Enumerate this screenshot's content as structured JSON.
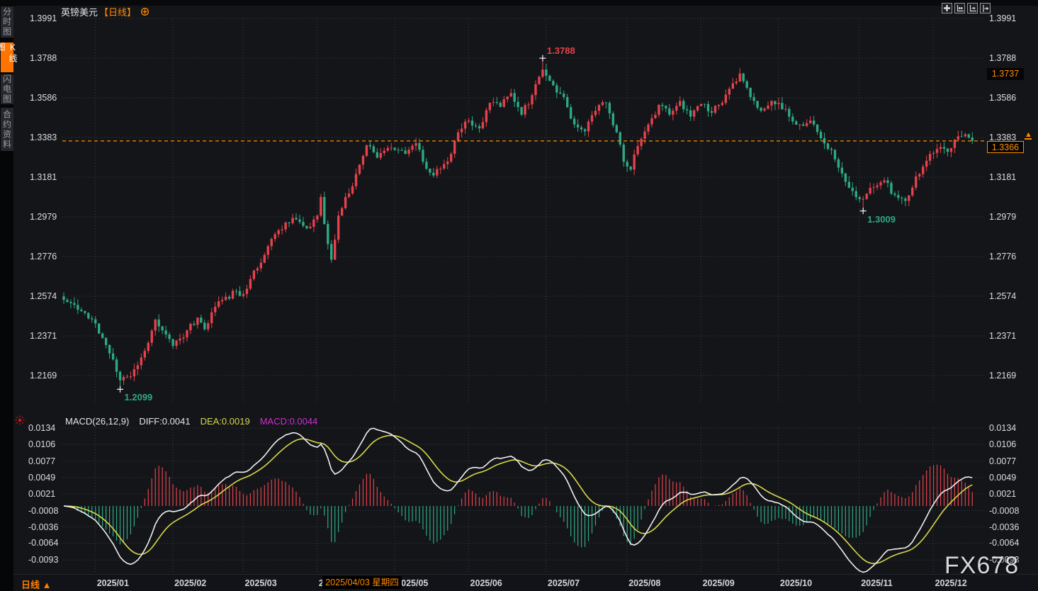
{
  "app": {
    "title": "英镑美元",
    "period_tag": "【日线】",
    "watermark": "FX678"
  },
  "sidebar": {
    "tabs": [
      {
        "label": "分时图",
        "active": false
      },
      {
        "label": "K线图",
        "active": true
      },
      {
        "label": "闪电图",
        "active": false
      },
      {
        "label": "合约资料",
        "active": false
      }
    ]
  },
  "toolbar": {
    "icons": [
      "crosshair-move-icon",
      "fit-both-axes-icon",
      "scroll-to-recent-icon",
      "shift-right-icon"
    ]
  },
  "price_boxes": {
    "upper_value": "1.3737",
    "current_value": "1.3366",
    "up_arrow": "▲"
  },
  "macd_header": {
    "main": "MACD(26,12,9)",
    "diff": "DIFF:0.0041",
    "dea": "DEA:0.0019",
    "macd": "MACD:0.0044"
  },
  "bottom": {
    "period_label": "日线 ▲",
    "date_tooltip": "2025/04/03 星期四"
  },
  "colors": {
    "accent_orange": "#ff8a00",
    "up_candle": "#e5424c",
    "down_candle": "#2daa83",
    "diff_line": "#f0f0f2",
    "dea_line": "#d8d84a",
    "macd_value_text": "#cc2fd0",
    "grid": "#3c3e44",
    "axis_text": "#dcdde0"
  },
  "chart_data": {
    "type": "candlestick+macd",
    "symbol": "英镑美元 (GBP/USD)",
    "interval": "daily",
    "price_axis_labels": [
      "1.3991",
      "1.3788",
      "1.3586",
      "1.3383",
      "1.3181",
      "1.2979",
      "1.2776",
      "1.2574",
      "1.2371",
      "1.2169"
    ],
    "price_axis_range": [
      1.2169,
      1.3991
    ],
    "macd_axis_labels": [
      "0.0134",
      "0.0106",
      "0.0077",
      "0.0049",
      "0.0021",
      "-0.0008",
      "-0.0036",
      "-0.0064",
      "-0.0093"
    ],
    "macd_axis_range": [
      -0.0093,
      0.0134
    ],
    "months": [
      {
        "label": "2025/01",
        "day": 9
      },
      {
        "label": "2025/02",
        "day": 31
      },
      {
        "label": "2025/03",
        "day": 51
      },
      {
        "label": "2025/04",
        "day": 72
      },
      {
        "label": "2025/05",
        "day": 94
      },
      {
        "label": "2025/06",
        "day": 115
      },
      {
        "label": "2025/07",
        "day": 137
      },
      {
        "label": "2025/08",
        "day": 160
      },
      {
        "label": "2025/09",
        "day": 181
      },
      {
        "label": "2025/10",
        "day": 203
      },
      {
        "label": "2025/11",
        "day": 226
      },
      {
        "label": "2025/12",
        "day": 247
      }
    ],
    "num_days": 259,
    "close_path_anchors": [
      [
        0,
        1.2555
      ],
      [
        4,
        1.2505
      ],
      [
        9,
        1.2435
      ],
      [
        12,
        1.2325
      ],
      [
        16,
        1.2145
      ],
      [
        19,
        1.2165
      ],
      [
        23,
        1.2295
      ],
      [
        26,
        1.2455
      ],
      [
        31,
        1.232
      ],
      [
        35,
        1.24
      ],
      [
        38,
        1.2465
      ],
      [
        40,
        1.2405
      ],
      [
        43,
        1.252
      ],
      [
        45,
        1.2555
      ],
      [
        49,
        1.26
      ],
      [
        51,
        1.2585
      ],
      [
        54,
        1.2705
      ],
      [
        57,
        1.2785
      ],
      [
        60,
        1.289
      ],
      [
        63,
        1.295
      ],
      [
        66,
        1.2965
      ],
      [
        69,
        1.292
      ],
      [
        72,
        1.2985
      ],
      [
        73,
        1.308
      ],
      [
        75,
        1.284
      ],
      [
        76,
        1.276
      ],
      [
        78,
        1.2985
      ],
      [
        80,
        1.308
      ],
      [
        82,
        1.3135
      ],
      [
        85,
        1.329
      ],
      [
        86,
        1.3345
      ],
      [
        89,
        1.328
      ],
      [
        92,
        1.333
      ],
      [
        94,
        1.332
      ],
      [
        97,
        1.33
      ],
      [
        100,
        1.3355
      ],
      [
        102,
        1.326
      ],
      [
        105,
        1.319
      ],
      [
        107,
        1.3225
      ],
      [
        110,
        1.33
      ],
      [
        112,
        1.341
      ],
      [
        115,
        1.347
      ],
      [
        118,
        1.343
      ],
      [
        121,
        1.356
      ],
      [
        124,
        1.354
      ],
      [
        127,
        1.361
      ],
      [
        130,
        1.35
      ],
      [
        133,
        1.36
      ],
      [
        136,
        1.373
      ],
      [
        139,
        1.365
      ],
      [
        142,
        1.359
      ],
      [
        145,
        1.345
      ],
      [
        148,
        1.3415
      ],
      [
        151,
        1.352
      ],
      [
        154,
        1.356
      ],
      [
        157,
        1.341
      ],
      [
        159,
        1.326
      ],
      [
        161,
        1.322
      ],
      [
        163,
        1.334
      ],
      [
        166,
        1.345
      ],
      [
        169,
        1.355
      ],
      [
        172,
        1.35
      ],
      [
        175,
        1.357
      ],
      [
        178,
        1.349
      ],
      [
        181,
        1.3555
      ],
      [
        184,
        1.351
      ],
      [
        187,
        1.356
      ],
      [
        190,
        1.366
      ],
      [
        192,
        1.371
      ],
      [
        195,
        1.359
      ],
      [
        198,
        1.352
      ],
      [
        201,
        1.357
      ],
      [
        203,
        1.356
      ],
      [
        206,
        1.349
      ],
      [
        209,
        1.345
      ],
      [
        212,
        1.347
      ],
      [
        215,
        1.338
      ],
      [
        218,
        1.332
      ],
      [
        221,
        1.32
      ],
      [
        224,
        1.311
      ],
      [
        227,
        1.307
      ],
      [
        230,
        1.313
      ],
      [
        233,
        1.3165
      ],
      [
        236,
        1.309
      ],
      [
        239,
        1.306
      ],
      [
        242,
        1.3185
      ],
      [
        245,
        1.3265
      ],
      [
        248,
        1.3325
      ],
      [
        251,
        1.331
      ],
      [
        254,
        1.339
      ],
      [
        256,
        1.34
      ],
      [
        258,
        1.3366
      ]
    ],
    "forced_extremes": [
      {
        "day": 16,
        "type": "low",
        "value": 1.2099
      },
      {
        "day": 136,
        "type": "high",
        "value": 1.3788
      },
      {
        "day": 192,
        "type": "high",
        "value": 1.3737
      },
      {
        "day": 227,
        "type": "low",
        "value": 1.3009
      }
    ],
    "annotations": [
      {
        "day": 136,
        "value": 1.3788,
        "text": "1.3788",
        "color": "#e5424c",
        "place": "above"
      },
      {
        "day": 227,
        "value": 1.3009,
        "text": "1.3009",
        "color": "#2daa83",
        "place": "below"
      },
      {
        "day": 16,
        "value": 1.2099,
        "text": "1.2099",
        "color": "#2daa83",
        "place": "below"
      }
    ],
    "current_price_line": 1.3366,
    "upper_marked_price": 1.3737,
    "macd_last_values": {
      "diff": 0.0041,
      "dea": 0.0019,
      "macd": 0.0044
    }
  }
}
